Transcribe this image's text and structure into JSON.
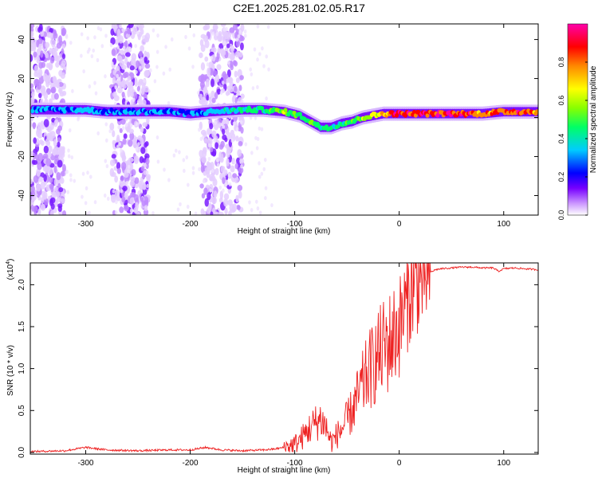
{
  "title": "C2E1.2025.281.02.05.R17",
  "chart_data": [
    {
      "type": "heatmap",
      "xlabel": "Height of straight line (km)",
      "ylabel": "Frequency (Hz)",
      "xlim": [
        -353,
        133
      ],
      "ylim": [
        -50,
        48
      ],
      "xticks": [
        -300,
        -200,
        -100,
        0,
        100
      ],
      "yticks": [
        -40,
        -20,
        0,
        20,
        40
      ],
      "colorbar": {
        "label": "Normalized spectral amplitude",
        "range": [
          0.0,
          1.0
        ],
        "ticks": [
          0.0,
          0.2,
          0.4,
          0.6,
          0.8
        ],
        "colors": [
          "#ffffff",
          "#cc99ff",
          "#7700ff",
          "#0000ff",
          "#00ccff",
          "#00ff66",
          "#88ff00",
          "#ffff00",
          "#ff8800",
          "#ff0000",
          "#ff00aa"
        ]
      },
      "ridge": {
        "x": [
          -330,
          -300,
          -280,
          -250,
          -220,
          -200,
          -180,
          -150,
          -130,
          -110,
          -95,
          -85,
          -75,
          -65,
          -55,
          -45,
          -35,
          -25,
          -15,
          0,
          20,
          50,
          80,
          100,
          133
        ],
        "y": [
          4,
          4,
          3,
          3,
          3,
          2,
          3,
          4,
          4,
          3,
          1,
          -2,
          -5,
          -5,
          -3,
          -2,
          0,
          1,
          2,
          2,
          2,
          2,
          2,
          3,
          3
        ],
        "peak_amplitude": [
          0.35,
          0.4,
          0.35,
          0.4,
          0.35,
          0.35,
          0.4,
          0.45,
          0.5,
          0.6,
          0.55,
          0.55,
          0.5,
          0.5,
          0.5,
          0.55,
          0.6,
          0.7,
          0.8,
          0.95,
          0.95,
          0.9,
          0.85,
          0.9,
          0.85
        ]
      },
      "noise_bands_x": [
        [
          -353,
          -320
        ],
        [
          -275,
          -240
        ],
        [
          -190,
          -150
        ]
      ]
    },
    {
      "type": "line",
      "xlabel": "Height of straight line (km)",
      "ylabel": "SNR (10 * v/v)",
      "y_scale_label": "(x10",
      "y_scale_exp": "4",
      "xlim": [
        -353,
        133
      ],
      "ylim": [
        -0.02,
        2.26
      ],
      "xticks": [
        -300,
        -200,
        -100,
        0,
        100
      ],
      "yticks": [
        0.0,
        0.5,
        1.0,
        1.5,
        2.0
      ],
      "ytick_labels": [
        "0.0",
        "0.5",
        "1.0",
        "1.5",
        "2.0"
      ],
      "series": [
        {
          "name": "SNR",
          "color": "#ee2222",
          "x": [
            -353,
            -320,
            -300,
            -280,
            -250,
            -220,
            -200,
            -185,
            -170,
            -150,
            -130,
            -120,
            -110,
            -100,
            -95,
            -90,
            -85,
            -80,
            -75,
            -70,
            -65,
            -60,
            -55,
            -50,
            -45,
            -40,
            -35,
            -30,
            -25,
            -20,
            -15,
            -10,
            -5,
            0,
            5,
            10,
            15,
            20,
            25,
            30,
            35,
            40,
            50,
            60,
            70,
            80,
            90,
            95,
            100,
            110,
            120,
            133
          ],
          "y": [
            0.01,
            0.02,
            0.06,
            0.03,
            0.02,
            0.03,
            0.03,
            0.06,
            0.03,
            0.02,
            0.03,
            0.04,
            0.06,
            0.1,
            0.15,
            0.22,
            0.3,
            0.35,
            0.4,
            0.3,
            0.12,
            0.2,
            0.28,
            0.38,
            0.5,
            0.65,
            0.8,
            0.95,
            1.05,
            1.15,
            1.25,
            1.3,
            1.4,
            1.5,
            1.7,
            1.9,
            2.0,
            2.05,
            2.1,
            2.15,
            2.18,
            2.19,
            2.2,
            2.21,
            2.21,
            2.2,
            2.2,
            2.16,
            2.19,
            2.2,
            2.19,
            2.18
          ]
        }
      ]
    }
  ]
}
